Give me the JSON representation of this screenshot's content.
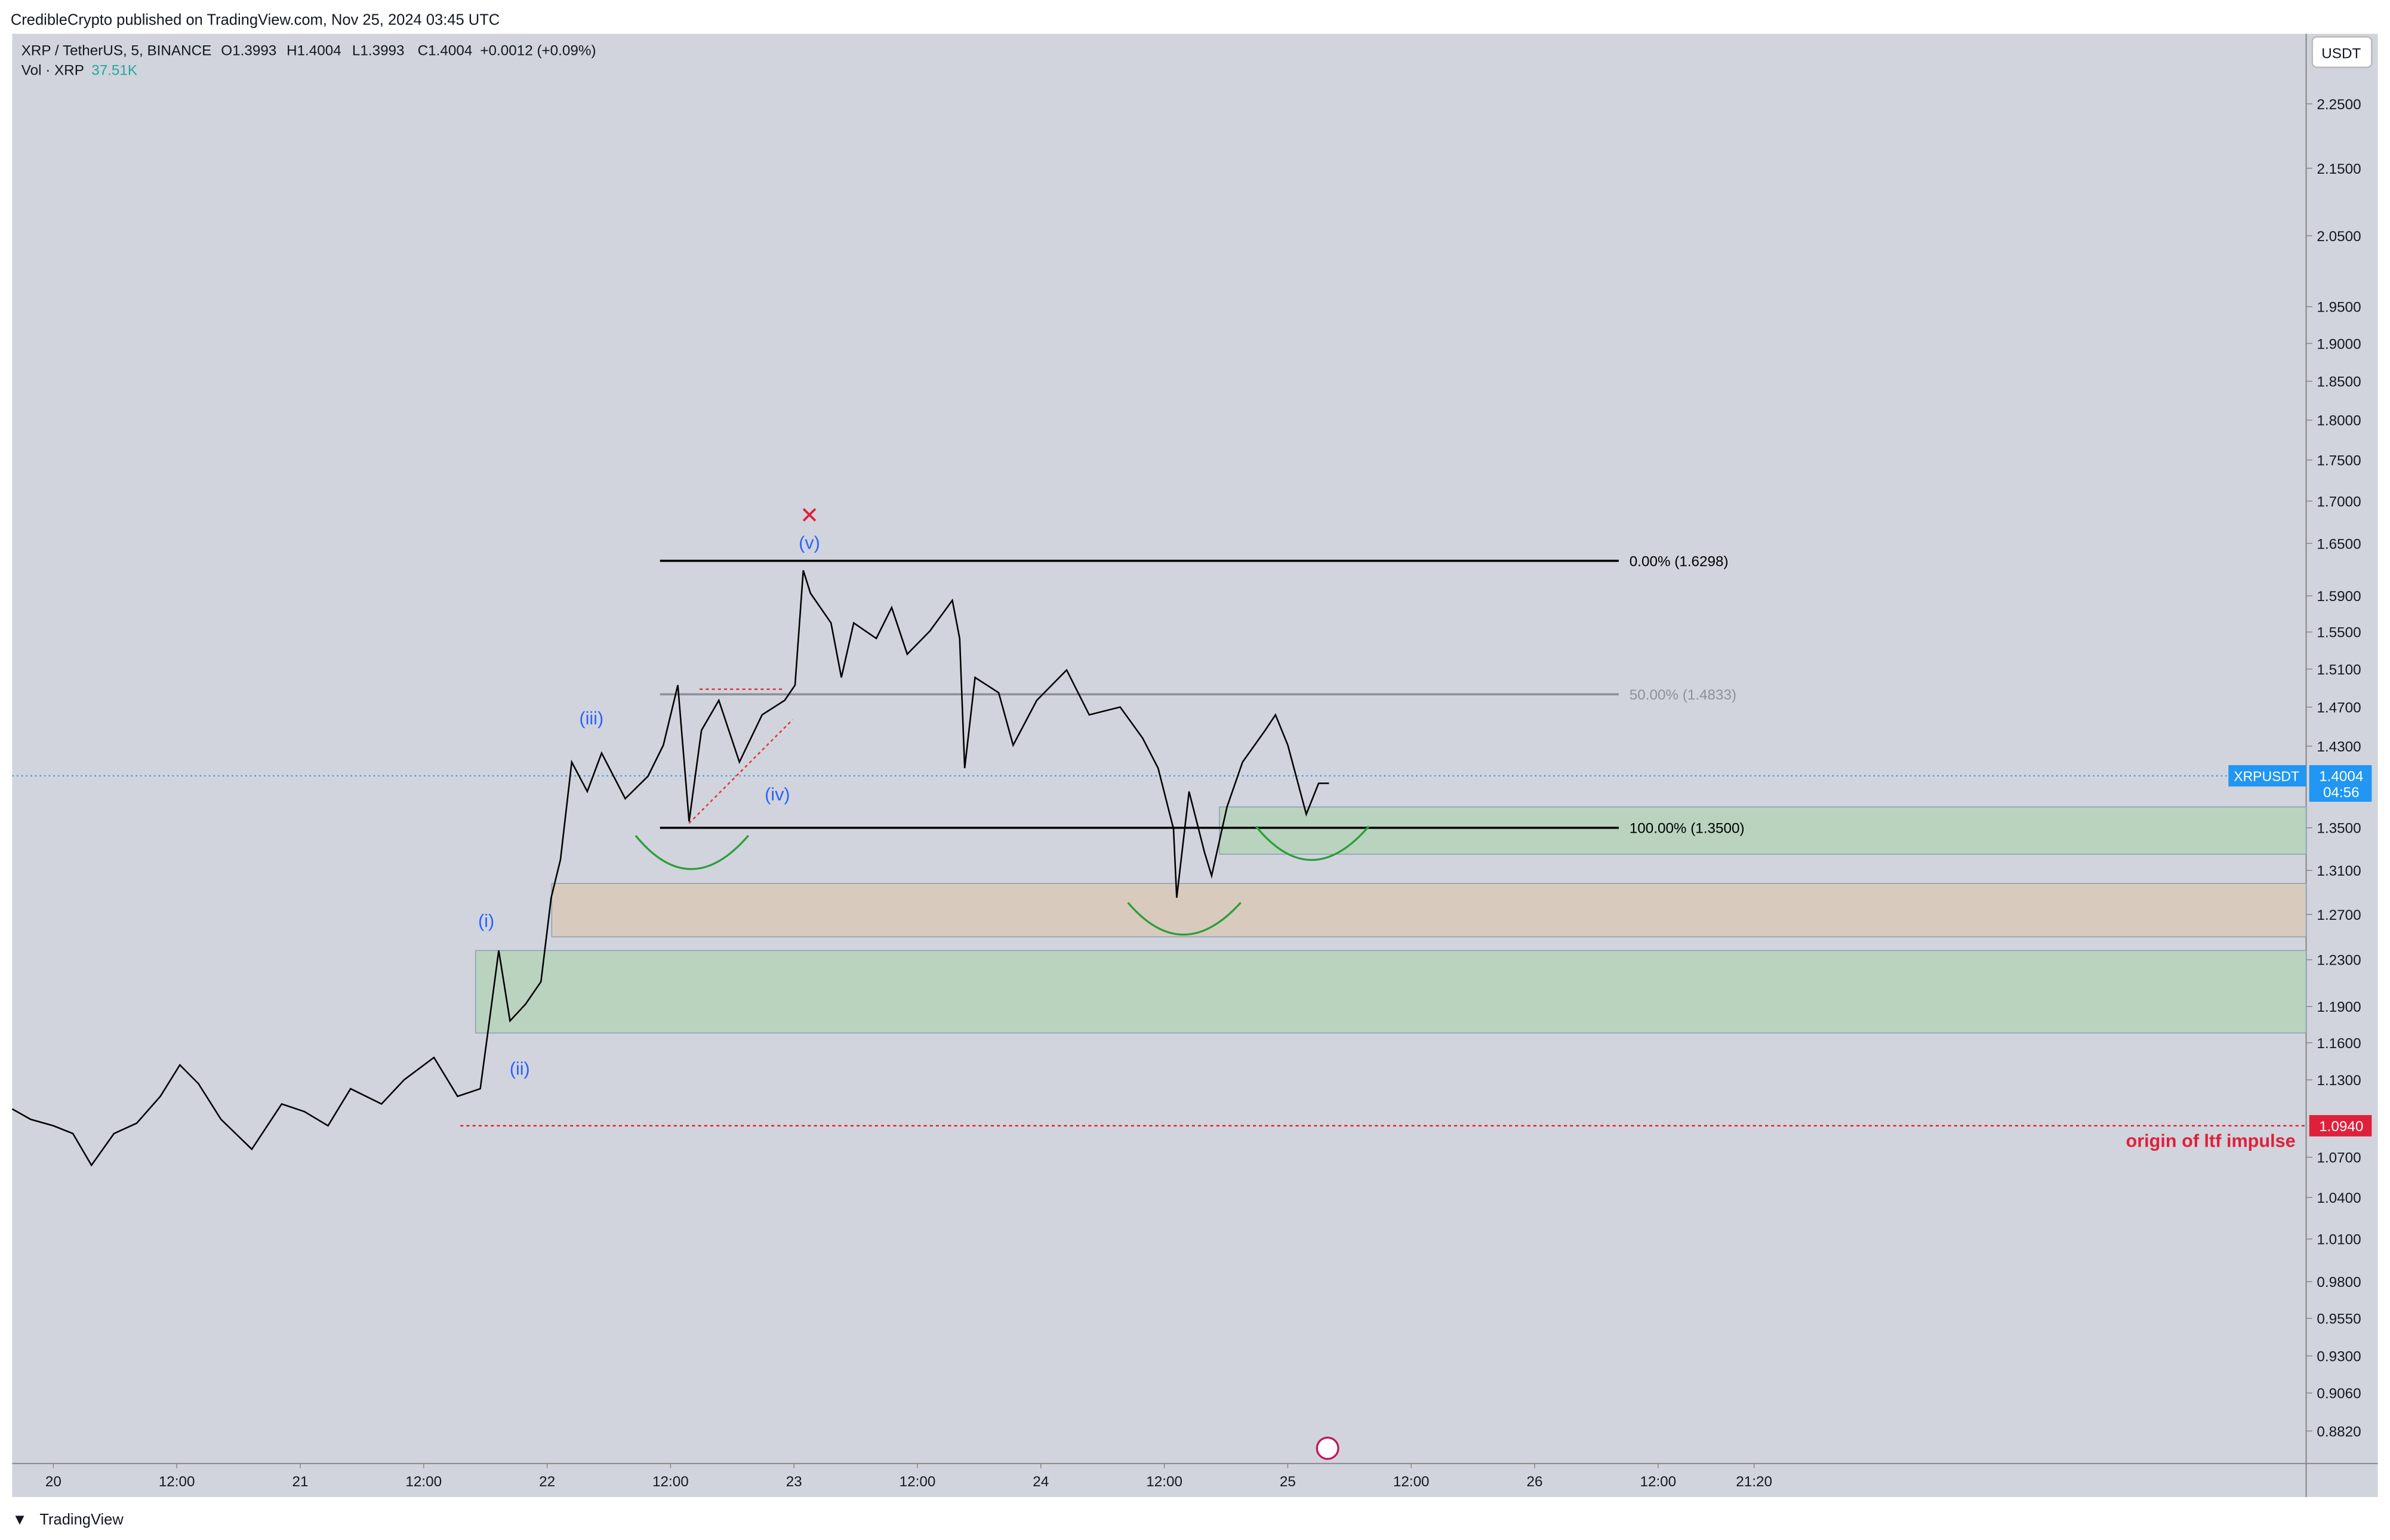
{
  "header": {
    "published": "CredibleCrypto published on TradingView.com, Nov 25, 2024 03:45 UTC",
    "symbol": "XRP / TetherUS, 5, BINANCE",
    "ohlc": [
      "O1.3993",
      "H1.4004",
      "L1.3993",
      "C1.4004",
      "+0.0012 (+0.09%)"
    ],
    "volume_label": "Vol · XRP",
    "volume_value": "37.51K",
    "currency": "USDT",
    "footer": "TradingView"
  },
  "chart_data": {
    "type": "line",
    "color": "#000000",
    "log_scale": true,
    "x": [
      -4.0,
      -2.2,
      0,
      1.9,
      3.7,
      5.9,
      8.1,
      10.4,
      12.3,
      14.1,
      16.3,
      19.3,
      22.2,
      24.4,
      26.7,
      28.9,
      31.9,
      34.1,
      37.0,
      39.3,
      41.5,
      42.2,
      43.3,
      44.4,
      45.9,
      47.4,
      48.4,
      49.3,
      50.4,
      51.9,
      53.3,
      55.6,
      57.8,
      59.3,
      60.7,
      61.8,
      63.0,
      64.7,
      66.7,
      68.9,
      71.1,
      72.1,
      72.9,
      73.6,
      75.6,
      76.6,
      77.8,
      80.0,
      81.5,
      83.0,
      85.2,
      87.4,
      88.1,
      88.6,
      89.6,
      91.9,
      93.3,
      95.6,
      98.5,
      100.7,
      103.7,
      105.9,
      107.4,
      108.9,
      109.2,
      110.4,
      111.9,
      112.6,
      114.1,
      115.6,
      117.8,
      118.8,
      120.0,
      121.8,
      123.0,
      124.0
    ],
    "values": [
      1.107,
      1.099,
      1.094,
      1.088,
      1.064,
      1.088,
      1.096,
      1.117,
      1.142,
      1.127,
      1.099,
      1.076,
      1.111,
      1.105,
      1.094,
      1.123,
      1.111,
      1.13,
      1.148,
      1.117,
      1.123,
      1.166,
      1.238,
      1.178,
      1.192,
      1.211,
      1.285,
      1.32,
      1.414,
      1.385,
      1.423,
      1.378,
      1.4,
      1.431,
      1.493,
      1.356,
      1.446,
      1.477,
      1.414,
      1.462,
      1.477,
      1.493,
      1.619,
      1.593,
      1.56,
      1.501,
      1.56,
      1.543,
      1.577,
      1.526,
      1.551,
      1.585,
      1.543,
      1.408,
      1.501,
      1.485,
      1.431,
      1.477,
      1.509,
      1.462,
      1.47,
      1.438,
      1.408,
      1.349,
      1.285,
      1.385,
      1.327,
      1.305,
      1.37,
      1.414,
      1.446,
      1.462,
      1.431,
      1.363,
      1.393,
      1.393
    ],
    "xlim": [
      -4,
      219
    ],
    "xticks": [
      {
        "value": 0,
        "label": "20"
      },
      {
        "value": 12,
        "label": "12:00"
      },
      {
        "value": 24,
        "label": "21"
      },
      {
        "value": 36,
        "label": "12:00"
      },
      {
        "value": 48,
        "label": "22"
      },
      {
        "value": 60,
        "label": "12:00"
      },
      {
        "value": 72,
        "label": "23"
      },
      {
        "value": 84,
        "label": "12:00"
      },
      {
        "value": 96,
        "label": "24"
      },
      {
        "value": 108,
        "label": "12:00"
      },
      {
        "value": 120,
        "label": "25"
      },
      {
        "value": 132,
        "label": "12:00"
      },
      {
        "value": 144,
        "label": "26"
      },
      {
        "value": 156,
        "label": "12:00"
      },
      {
        "value": 165.33,
        "label": "21:20"
      }
    ],
    "ylim": [
      0.862,
      2.364
    ],
    "yticks": [
      {
        "value": 2.25,
        "label": "2.2500"
      },
      {
        "value": 2.15,
        "label": "2.1500"
      },
      {
        "value": 2.05,
        "label": "2.0500"
      },
      {
        "value": 1.95,
        "label": "1.9500"
      },
      {
        "value": 1.9,
        "label": "1.9000"
      },
      {
        "value": 1.85,
        "label": "1.8500"
      },
      {
        "value": 1.8,
        "label": "1.8000"
      },
      {
        "value": 1.75,
        "label": "1.7500"
      },
      {
        "value": 1.7,
        "label": "1.7000"
      },
      {
        "value": 1.65,
        "label": "1.6500"
      },
      {
        "value": 1.59,
        "label": "1.5900"
      },
      {
        "value": 1.55,
        "label": "1.5500"
      },
      {
        "value": 1.51,
        "label": "1.5100"
      },
      {
        "value": 1.47,
        "label": "1.4700"
      },
      {
        "value": 1.43,
        "label": "1.4300"
      },
      {
        "value": 1.35,
        "label": "1.3500"
      },
      {
        "value": 1.31,
        "label": "1.3100"
      },
      {
        "value": 1.27,
        "label": "1.2700"
      },
      {
        "value": 1.23,
        "label": "1.2300"
      },
      {
        "value": 1.19,
        "label": "1.1900"
      },
      {
        "value": 1.16,
        "label": "1.1600"
      },
      {
        "value": 1.13,
        "label": "1.1300"
      },
      {
        "value": 1.07,
        "label": "1.0700"
      },
      {
        "value": 1.04,
        "label": "1.0400"
      },
      {
        "value": 1.01,
        "label": "1.0100"
      },
      {
        "value": 0.98,
        "label": "0.9800"
      },
      {
        "value": 0.955,
        "label": "0.9550"
      },
      {
        "value": 0.93,
        "label": "0.9300"
      },
      {
        "value": 0.906,
        "label": "0.9060"
      },
      {
        "value": 0.882,
        "label": "0.8820"
      }
    ],
    "fib_levels": [
      {
        "value": 1.6298,
        "label": "0.00% (1.6298)",
        "color": "#000000"
      },
      {
        "value": 1.4833,
        "label": "50.00% (1.4833)",
        "color": "#8f9199"
      },
      {
        "value": 1.35,
        "label": "100.00% (1.3500)",
        "color": "#000000"
      }
    ],
    "zones": [
      {
        "low": 1.325,
        "high": 1.37,
        "color": "#b9d3bf"
      },
      {
        "low": 1.25,
        "high": 1.298,
        "color": "#d8cbbd"
      },
      {
        "low": 1.168,
        "high": 1.238,
        "color": "#b9d3bf"
      }
    ],
    "price_line": {
      "label": "XRPUSDT",
      "value": 1.4004,
      "countdown": "04:56"
    },
    "origin_line": {
      "value": 1.094,
      "value_label": "1.0940",
      "label": "origin of ltf impulse"
    },
    "wave_labels": [
      "(i)",
      "(ii)",
      "(iii)",
      "(iv)",
      "(v)"
    ],
    "invalid_mark": "✕"
  }
}
